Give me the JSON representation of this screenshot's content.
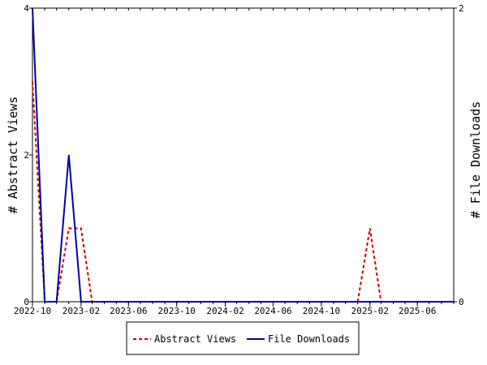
{
  "chart_data": {
    "type": "line",
    "x_axis_type": "date",
    "x_range": [
      "2022-10-01",
      "2025-09-01"
    ],
    "x_ticks": [
      "2022-10",
      "2023-02",
      "2023-06",
      "2023-10",
      "2024-02",
      "2024-06",
      "2024-10",
      "2025-02",
      "2025-06"
    ],
    "ylabel_left": "# Abstract Views",
    "ylabel_right": "# File Downloads",
    "ylim_left": [
      0,
      4
    ],
    "ylim_right": [
      0,
      2
    ],
    "yticks_left": [
      "0",
      "2",
      "4"
    ],
    "yticks_right": [
      "0",
      "2"
    ],
    "grid": false,
    "legend_position": "bottom",
    "series": [
      {
        "name": "Abstract Views",
        "axis": "left",
        "color": "#cc0000",
        "style": "dashed",
        "points": [
          {
            "x": "2022-10-01",
            "y": 3
          },
          {
            "x": "2022-11-01",
            "y": 0
          },
          {
            "x": "2022-12-01",
            "y": 0
          },
          {
            "x": "2023-01-01",
            "y": 1
          },
          {
            "x": "2023-02-01",
            "y": 1
          },
          {
            "x": "2023-03-01",
            "y": 0
          },
          {
            "x": "2025-01-01",
            "y": 0
          },
          {
            "x": "2025-02-01",
            "y": 1
          },
          {
            "x": "2025-03-01",
            "y": 0
          },
          {
            "x": "2025-09-01",
            "y": 0
          }
        ]
      },
      {
        "name": "File Downloads",
        "axis": "right",
        "color": "#0000aa",
        "style": "solid",
        "points": [
          {
            "x": "2022-10-01",
            "y": 2
          },
          {
            "x": "2022-11-01",
            "y": 0
          },
          {
            "x": "2022-12-01",
            "y": 0
          },
          {
            "x": "2023-01-01",
            "y": 1
          },
          {
            "x": "2023-02-01",
            "y": 0
          },
          {
            "x": "2025-09-01",
            "y": 0
          }
        ]
      }
    ]
  }
}
